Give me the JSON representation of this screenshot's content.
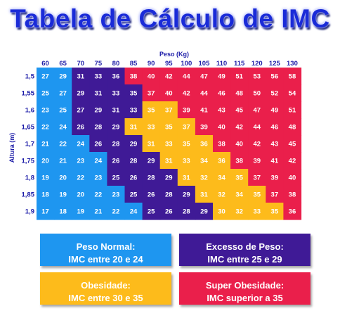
{
  "title": "Tabela de Cálculo de IMC",
  "chart_data": {
    "type": "heatmap",
    "xlabel": "Peso (Kg)",
    "ylabel": "Altura (m)",
    "x": [
      "60",
      "65",
      "70",
      "75",
      "80",
      "85",
      "90",
      "95",
      "100",
      "105",
      "110",
      "115",
      "120",
      "125",
      "130"
    ],
    "y": [
      "1,5",
      "1,55",
      "1,6",
      "1,65",
      "1,7",
      "1,75",
      "1,8",
      "1,85",
      "1,9"
    ],
    "values": [
      [
        27,
        29,
        31,
        33,
        36,
        38,
        40,
        42,
        44,
        47,
        49,
        51,
        53,
        56,
        58
      ],
      [
        25,
        27,
        29,
        31,
        33,
        35,
        37,
        40,
        42,
        44,
        46,
        48,
        50,
        52,
        54
      ],
      [
        23,
        25,
        27,
        29,
        31,
        33,
        35,
        37,
        39,
        41,
        43,
        45,
        47,
        49,
        51
      ],
      [
        22,
        24,
        26,
        28,
        29,
        31,
        33,
        35,
        37,
        39,
        40,
        42,
        44,
        46,
        48
      ],
      [
        21,
        22,
        24,
        26,
        28,
        29,
        31,
        33,
        35,
        36,
        38,
        40,
        42,
        43,
        45
      ],
      [
        20,
        21,
        23,
        24,
        26,
        28,
        29,
        31,
        33,
        34,
        36,
        38,
        39,
        41,
        42
      ],
      [
        19,
        20,
        22,
        23,
        25,
        26,
        28,
        29,
        31,
        32,
        34,
        35,
        37,
        39,
        40
      ],
      [
        18,
        19,
        20,
        22,
        23,
        25,
        26,
        28,
        29,
        31,
        32,
        34,
        35,
        37,
        38
      ],
      [
        17,
        18,
        19,
        21,
        22,
        24,
        25,
        26,
        28,
        29,
        30,
        32,
        33,
        35,
        36
      ]
    ],
    "categories": [
      [
        0,
        0,
        1,
        1,
        1,
        3,
        3,
        3,
        3,
        3,
        3,
        3,
        3,
        3,
        3
      ],
      [
        0,
        0,
        1,
        1,
        1,
        1,
        3,
        3,
        3,
        3,
        3,
        3,
        3,
        3,
        3
      ],
      [
        0,
        0,
        1,
        1,
        1,
        1,
        2,
        2,
        3,
        3,
        3,
        3,
        3,
        3,
        3
      ],
      [
        0,
        0,
        1,
        1,
        1,
        2,
        2,
        2,
        2,
        3,
        3,
        3,
        3,
        3,
        3
      ],
      [
        0,
        0,
        0,
        1,
        1,
        1,
        2,
        2,
        2,
        2,
        3,
        3,
        3,
        3,
        3
      ],
      [
        0,
        0,
        0,
        0,
        1,
        1,
        1,
        2,
        2,
        2,
        2,
        3,
        3,
        3,
        3
      ],
      [
        0,
        0,
        0,
        0,
        1,
        1,
        1,
        1,
        2,
        2,
        2,
        2,
        3,
        3,
        3
      ],
      [
        0,
        0,
        0,
        0,
        0,
        1,
        1,
        1,
        1,
        2,
        2,
        2,
        2,
        3,
        3
      ],
      [
        0,
        0,
        0,
        0,
        0,
        0,
        1,
        1,
        1,
        1,
        2,
        2,
        2,
        2,
        3
      ]
    ],
    "legend": [
      {
        "name": "Peso Normal:",
        "range": "IMC entre 20 e 24",
        "color": "#1e96f0"
      },
      {
        "name": "Excesso de Peso:",
        "range": "IMC entre 25 e 29",
        "color": "#3f1a96"
      },
      {
        "name": "Obesidade:",
        "range": "IMC entre 30 e 35",
        "color": "#fdbb1b"
      },
      {
        "name": "Super Obesidade:",
        "range": "IMC superior a 35",
        "color": "#ea1f4b"
      }
    ],
    "colors": {
      "normal": "#1e96f0",
      "excess": "#3f1a96",
      "obesity": "#fdbb1b",
      "super": "#ea1f4b",
      "axis_text": "#1c1ca8"
    }
  }
}
